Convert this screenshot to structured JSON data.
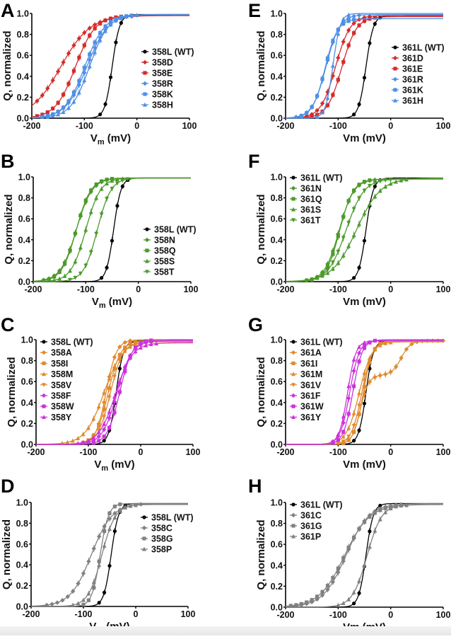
{
  "chart_data": [
    {
      "panel": "A",
      "type": "line",
      "xlabel": "Vm (mV)",
      "xlabel_sub": true,
      "ylabel": "Q, normalized",
      "xlim": [
        -200,
        100
      ],
      "ylim": [
        0,
        1.0
      ],
      "xticks": [
        "-200",
        "-100",
        "0",
        "100"
      ],
      "yticks": [
        "0.0",
        "0.2",
        "0.4",
        "0.6",
        "0.8",
        "1.0"
      ],
      "legend_position": "right-middle",
      "series": [
        {
          "name": "358L (WT)",
          "color": "#000000",
          "marker": "circle",
          "v_half": -47,
          "slope": 7,
          "max": 0.99
        },
        {
          "name": "358D",
          "color": "#d42b2b",
          "marker": "diamond",
          "v_half": -145,
          "slope": 28,
          "max": 0.98
        },
        {
          "name": "358E",
          "color": "#d42b2b",
          "marker": "square",
          "v_half": -117,
          "slope": 19,
          "max": 0.98
        },
        {
          "name": "358R",
          "color": "#4f8fe6",
          "marker": "diamond",
          "v_half": -95,
          "slope": 20,
          "max": 0.99
        },
        {
          "name": "358K",
          "color": "#4f8fe6",
          "marker": "square",
          "v_half": -99,
          "slope": 19,
          "max": 0.99
        },
        {
          "name": "358H",
          "color": "#4f8fe6",
          "marker": "triangle",
          "v_half": -90,
          "slope": 18,
          "max": 0.99
        }
      ]
    },
    {
      "panel": "B",
      "type": "line",
      "xlabel": "Vm (mV)",
      "xlabel_sub": true,
      "ylabel": "Q, normalized",
      "xlim": [
        -200,
        100
      ],
      "ylim": [
        0,
        1.0
      ],
      "xticks": [
        "-200",
        "-100",
        "0",
        "100"
      ],
      "yticks": [
        "0.0",
        "0.2",
        "0.4",
        "0.6",
        "0.8",
        "1.0"
      ],
      "legend_position": "right-middle",
      "series": [
        {
          "name": "358L (WT)",
          "color": "#000000",
          "marker": "circle",
          "v_half": -47,
          "slope": 7,
          "max": 0.99
        },
        {
          "name": "358N",
          "color": "#4c9a2a",
          "marker": "diamond",
          "v_half": -118,
          "slope": 15,
          "max": 0.99
        },
        {
          "name": "358Q",
          "color": "#4c9a2a",
          "marker": "square",
          "v_half": -118,
          "slope": 14,
          "max": 0.99
        },
        {
          "name": "358S",
          "color": "#4c9a2a",
          "marker": "triangle",
          "v_half": -100,
          "slope": 14,
          "max": 0.99
        },
        {
          "name": "358T",
          "color": "#4c9a2a",
          "marker": "triangle-down",
          "v_half": -78,
          "slope": 13,
          "max": 0.99
        }
      ]
    },
    {
      "panel": "C",
      "type": "line",
      "xlabel": "Vm (mV)",
      "xlabel_sub": true,
      "ylabel": "Q, normalized",
      "xlim": [
        -200,
        100
      ],
      "ylim": [
        0,
        1.0
      ],
      "xticks": [
        "-200",
        "-100",
        "0",
        "100"
      ],
      "yticks": [
        "0.0",
        "0.2",
        "0.4",
        "0.6",
        "0.8",
        "1.0"
      ],
      "legend_position": "top-left",
      "series": [
        {
          "name": "358L (WT)",
          "color": "#000000",
          "marker": "circle",
          "v_half": -47,
          "slope": 7,
          "max": 0.99
        },
        {
          "name": "358A",
          "color": "#e08a2e",
          "marker": "diamond",
          "v_half": -66,
          "slope": 10,
          "max": 1.0
        },
        {
          "name": "358I",
          "color": "#e08a2e",
          "marker": "square",
          "v_half": -62,
          "slope": 12,
          "max": 0.99
        },
        {
          "name": "358M",
          "color": "#e08a2e",
          "marker": "triangle",
          "v_half": -70,
          "slope": 18,
          "max": 0.99
        },
        {
          "name": "358V",
          "color": "#e08a2e",
          "marker": "triangle-down",
          "v_half": -58,
          "slope": 12,
          "max": 0.98
        },
        {
          "name": "358F",
          "color": "#cc33dd",
          "marker": "diamond",
          "v_half": -45,
          "slope": 14,
          "max": 0.99
        },
        {
          "name": "358W",
          "color": "#cc33dd",
          "marker": "square",
          "v_half": -40,
          "slope": 12,
          "max": 1.0
        },
        {
          "name": "358Y",
          "color": "#cc33dd",
          "marker": "triangle",
          "v_half": -48,
          "slope": 16,
          "max": 0.97
        }
      ]
    },
    {
      "panel": "D",
      "type": "line",
      "xlabel": "Vm (mV)",
      "xlabel_sub": true,
      "ylabel": "Q, normalized",
      "xlim": [
        -200,
        100
      ],
      "ylim": [
        0,
        1.0
      ],
      "xticks": [
        "-200",
        "-100",
        "0",
        "100"
      ],
      "yticks": [
        "0.0",
        "0.2",
        "0.4",
        "0.6",
        "0.8",
        "1.0"
      ],
      "legend_position": "right-top",
      "series": [
        {
          "name": "358L (WT)",
          "color": "#000000",
          "marker": "circle",
          "v_half": -47,
          "slope": 7,
          "max": 0.99
        },
        {
          "name": "358C",
          "color": "#808080",
          "marker": "diamond",
          "v_half": -85,
          "slope": 20,
          "max": 0.99
        },
        {
          "name": "358G",
          "color": "#808080",
          "marker": "square",
          "v_half": -68,
          "slope": 8,
          "max": 0.99
        },
        {
          "name": "358P",
          "color": "#808080",
          "marker": "triangle",
          "v_half": -65,
          "slope": 13,
          "max": 0.98
        }
      ]
    },
    {
      "panel": "E",
      "type": "line",
      "xlabel": "Vm (mV)",
      "xlabel_sub": false,
      "ylabel": "Q, normalized",
      "xlim": [
        -200,
        100
      ],
      "ylim": [
        0,
        1.0
      ],
      "xticks": [
        "-200",
        "-100",
        "0",
        "100"
      ],
      "yticks": [
        "0.0",
        "0.2",
        "0.4",
        "0.6",
        "0.8",
        "1.0"
      ],
      "legend_position": "right-middle",
      "series": [
        {
          "name": "361L (WT)",
          "color": "#000000",
          "marker": "circle",
          "v_half": -47,
          "slope": 7,
          "max": 0.98
        },
        {
          "name": "361D",
          "color": "#d42b2b",
          "marker": "diamond",
          "v_half": -105,
          "slope": 14,
          "max": 0.98
        },
        {
          "name": "361E",
          "color": "#d42b2b",
          "marker": "square",
          "v_half": -93,
          "slope": 14,
          "max": 0.97
        },
        {
          "name": "361R",
          "color": "#4f8fe6",
          "marker": "diamond",
          "v_half": -123,
          "slope": 13,
          "max": 0.99
        },
        {
          "name": "361K",
          "color": "#4f8fe6",
          "marker": "square",
          "v_half": -125,
          "slope": 12,
          "max": 0.95
        },
        {
          "name": "361H",
          "color": "#4f8fe6",
          "marker": "triangle",
          "v_half": -110,
          "slope": 7,
          "max": 1.0
        }
      ]
    },
    {
      "panel": "F",
      "type": "line",
      "xlabel": "Vm (mV)",
      "xlabel_sub": false,
      "ylabel": "Q, normalized",
      "xlim": [
        -200,
        100
      ],
      "ylim": [
        0,
        1.0
      ],
      "xticks": [
        "-200",
        "-100",
        "0",
        "100"
      ],
      "yticks": [
        "0.0",
        "0.2",
        "0.4",
        "0.6",
        "0.8",
        "1.0"
      ],
      "legend_position": "top-left",
      "series": [
        {
          "name": "361L (WT)",
          "color": "#000000",
          "marker": "circle",
          "v_half": -47,
          "slope": 7,
          "max": 0.99
        },
        {
          "name": "361N",
          "color": "#4c9a2a",
          "marker": "diamond",
          "v_half": -98,
          "slope": 14,
          "max": 0.98
        },
        {
          "name": "361Q",
          "color": "#4c9a2a",
          "marker": "square",
          "v_half": -97,
          "slope": 13,
          "max": 0.98
        },
        {
          "name": "361S",
          "color": "#4c9a2a",
          "marker": "triangle",
          "v_half": -65,
          "slope": 23,
          "max": 0.99
        },
        {
          "name": "361T",
          "color": "#4c9a2a",
          "marker": "triangle-down",
          "v_half": -85,
          "slope": 17,
          "max": 0.98
        }
      ]
    },
    {
      "panel": "G",
      "type": "line",
      "xlabel": "Vm (mV)",
      "xlabel_sub": false,
      "ylabel": "Q, normalized",
      "xlim": [
        -200,
        100
      ],
      "ylim": [
        0,
        1.0
      ],
      "xticks": [
        "-200",
        "-100",
        "0",
        "100"
      ],
      "yticks": [
        "0.0",
        "0.2",
        "0.4",
        "0.6",
        "0.8",
        "1.0"
      ],
      "legend_position": "top-left",
      "series": [
        {
          "name": "361L (WT)",
          "color": "#000000",
          "marker": "circle",
          "v_half": -47,
          "slope": 7,
          "max": 0.99
        },
        {
          "name": "361A",
          "color": "#e08a2e",
          "marker": "diamond",
          "v_half": -58,
          "slope": 8,
          "max": 0.66,
          "second_component": {
            "v_half": 20,
            "slope": 9,
            "amplitude": 0.33
          }
        },
        {
          "name": "361I",
          "color": "#e08a2e",
          "marker": "square",
          "v_half": -52,
          "slope": 9,
          "max": 0.99
        },
        {
          "name": "361M",
          "color": "#e08a2e",
          "marker": "triangle",
          "v_half": -60,
          "slope": 12,
          "max": 0.98
        },
        {
          "name": "361V",
          "color": "#e08a2e",
          "marker": "triangle-down",
          "v_half": -55,
          "slope": 10,
          "max": 0.98
        },
        {
          "name": "361F",
          "color": "#cc33dd",
          "marker": "diamond",
          "v_half": -78,
          "slope": 9,
          "max": 0.99
        },
        {
          "name": "361W",
          "color": "#cc33dd",
          "marker": "square",
          "v_half": -72,
          "slope": 9,
          "max": 1.0
        },
        {
          "name": "361Y",
          "color": "#cc33dd",
          "marker": "triangle",
          "v_half": -82,
          "slope": 8,
          "max": 0.99
        }
      ]
    },
    {
      "panel": "H",
      "type": "line",
      "xlabel": "Vm (mV)",
      "xlabel_sub": false,
      "ylabel": "Q, normalized",
      "xlim": [
        -200,
        100
      ],
      "ylim": [
        0,
        1.0
      ],
      "xticks": [
        "-200",
        "-100",
        "0",
        "100"
      ],
      "yticks": [
        "0.0",
        "0.2",
        "0.4",
        "0.6",
        "0.8",
        "1.0"
      ],
      "legend_position": "top-left",
      "series": [
        {
          "name": "361L (WT)",
          "color": "#000000",
          "marker": "circle",
          "v_half": -47,
          "slope": 7,
          "max": 0.99
        },
        {
          "name": "361C",
          "color": "#808080",
          "marker": "diamond",
          "v_half": -85,
          "slope": 22,
          "max": 0.99
        },
        {
          "name": "361G",
          "color": "#808080",
          "marker": "square",
          "v_half": -88,
          "slope": 24,
          "max": 0.98
        },
        {
          "name": "361P",
          "color": "#808080",
          "marker": "triangle",
          "v_half": -45,
          "slope": 14,
          "max": 0.98
        }
      ]
    }
  ]
}
